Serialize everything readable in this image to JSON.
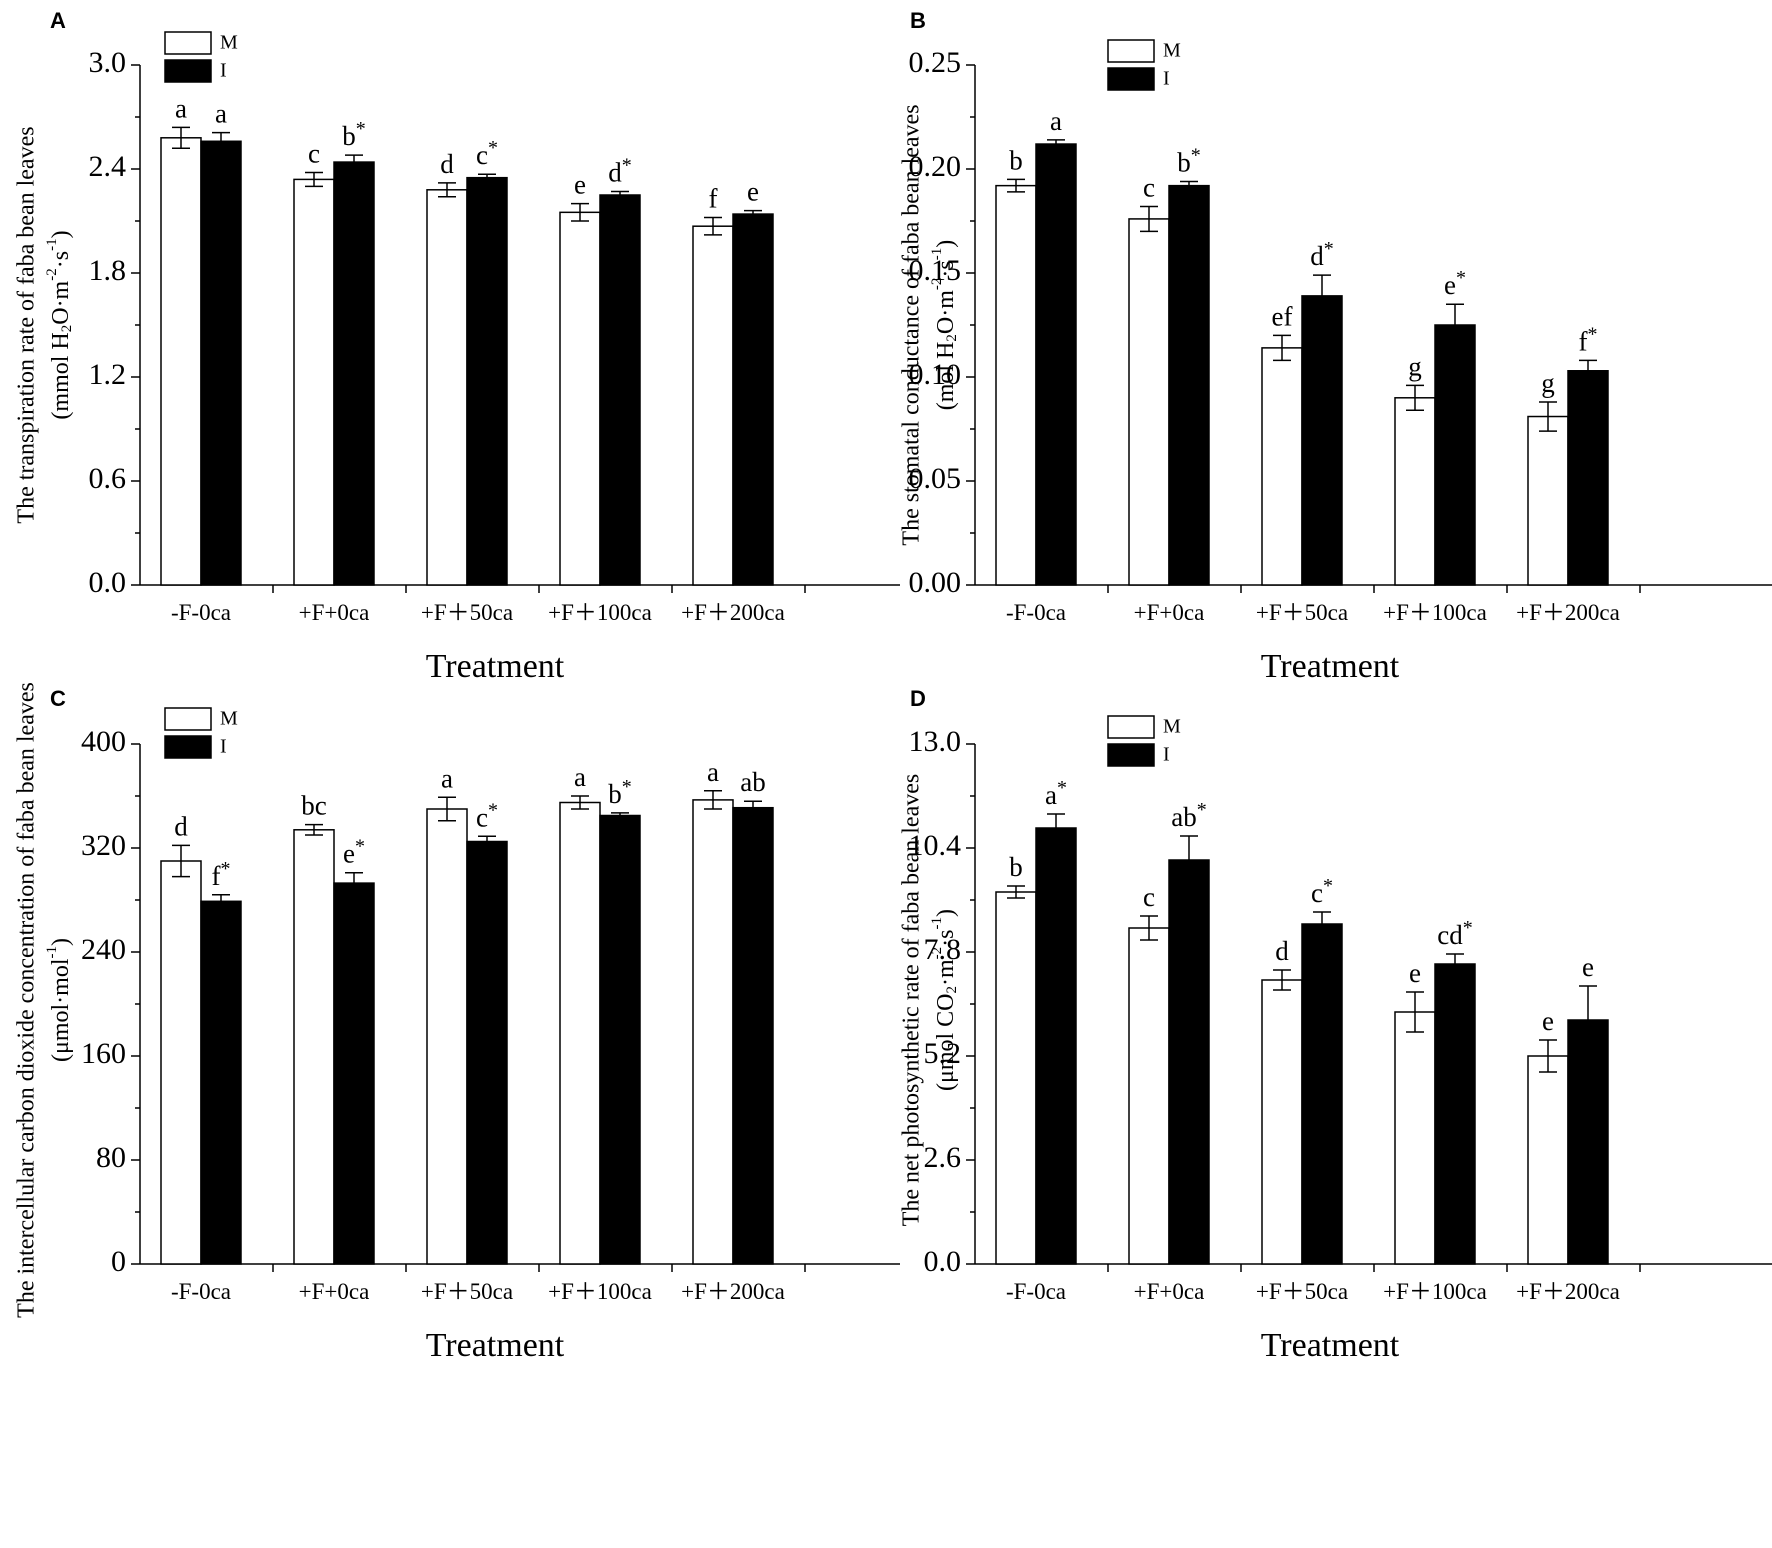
{
  "chart_data": [
    {
      "panel": "A",
      "type": "bar",
      "categories": [
        "-F-0ca",
        "+F+0ca",
        "+F＋50ca",
        "+F＋100ca",
        "+F＋200ca"
      ],
      "xlabel": "Treatment",
      "ylabel_main": "The transpiration rate of faba bean leaves",
      "ylabel_unit_parts": [
        "(mmol H",
        "2",
        "O·m",
        "-2",
        "·s",
        "-1",
        ")"
      ],
      "ylim": [
        0,
        3.0
      ],
      "yticks": [
        0.0,
        0.6,
        1.2,
        1.8,
        2.4,
        3.0
      ],
      "tick_decimals": 1,
      "legend": [
        "M",
        "I"
      ],
      "series": [
        {
          "name": "M",
          "values": [
            2.58,
            2.34,
            2.28,
            2.15,
            2.07
          ],
          "errors": [
            0.06,
            0.04,
            0.04,
            0.05,
            0.05
          ],
          "labels": [
            "a",
            "c",
            "d",
            "e",
            "f"
          ],
          "stars": [
            false,
            false,
            false,
            false,
            false
          ]
        },
        {
          "name": "I",
          "values": [
            2.56,
            2.44,
            2.35,
            2.25,
            2.14
          ],
          "errors": [
            0.05,
            0.04,
            0.02,
            0.02,
            0.02
          ],
          "labels": [
            "a",
            "b",
            "c",
            "d",
            "e"
          ],
          "stars": [
            false,
            true,
            true,
            true,
            false
          ]
        }
      ]
    },
    {
      "panel": "B",
      "type": "bar",
      "categories": [
        "-F-0ca",
        "+F+0ca",
        "+F＋50ca",
        "+F＋100ca",
        "+F＋200ca"
      ],
      "xlabel": "Treatment",
      "ylabel_main": "The stomatal conductance of faba bean leaves",
      "ylabel_unit_parts": [
        "(mol H",
        "2",
        "O·m",
        "-2",
        "·s",
        "-1",
        ")"
      ],
      "ylim": [
        0,
        0.25
      ],
      "yticks": [
        0.0,
        0.05,
        0.1,
        0.15,
        0.2,
        0.25
      ],
      "tick_decimals": 2,
      "legend": [
        "M",
        "I"
      ],
      "series": [
        {
          "name": "M",
          "values": [
            0.192,
            0.176,
            0.114,
            0.09,
            0.081
          ],
          "errors": [
            0.003,
            0.006,
            0.006,
            0.006,
            0.007
          ],
          "labels": [
            "b",
            "c",
            "ef",
            "g",
            "g"
          ],
          "stars": [
            false,
            false,
            false,
            false,
            false
          ]
        },
        {
          "name": "I",
          "values": [
            0.212,
            0.192,
            0.139,
            0.125,
            0.103
          ],
          "errors": [
            0.002,
            0.002,
            0.01,
            0.01,
            0.005
          ],
          "labels": [
            "a",
            "b",
            "d",
            "e",
            "f"
          ],
          "stars": [
            false,
            true,
            true,
            true,
            true
          ]
        }
      ]
    },
    {
      "panel": "C",
      "type": "bar",
      "categories": [
        "-F-0ca",
        "+F+0ca",
        "+F＋50ca",
        "+F＋100ca",
        "+F＋200ca"
      ],
      "xlabel": "Treatment",
      "ylabel_main": "The intercellular carbon dioxide concentration of faba bean leaves",
      "ylabel_unit_parts": [
        "(μmol·mol",
        "-1",
        ")"
      ],
      "ylim": [
        0,
        400
      ],
      "yticks": [
        0,
        80,
        160,
        240,
        320,
        400
      ],
      "tick_decimals": 0,
      "legend": [
        "M",
        "I"
      ],
      "series": [
        {
          "name": "M",
          "values": [
            310,
            334,
            350,
            355,
            357
          ],
          "errors": [
            12,
            4,
            9,
            5,
            7
          ],
          "labels": [
            "d",
            "bc",
            "a",
            "a",
            "a"
          ],
          "stars": [
            false,
            false,
            false,
            false,
            false
          ]
        },
        {
          "name": "I",
          "values": [
            279,
            293,
            325,
            345,
            351
          ],
          "errors": [
            5,
            8,
            4,
            2,
            5
          ],
          "labels": [
            "f",
            "e",
            "c",
            "b",
            "ab"
          ],
          "stars": [
            true,
            true,
            true,
            true,
            false
          ]
        }
      ]
    },
    {
      "panel": "D",
      "type": "bar",
      "categories": [
        "-F-0ca",
        "+F+0ca",
        "+F＋50ca",
        "+F＋100ca",
        "+F＋200ca"
      ],
      "xlabel": "Treatment",
      "ylabel_main": "The net photosynthetic rate of faba bean leaves",
      "ylabel_unit_parts": [
        "(μmol CO",
        "2",
        "·m",
        "-2",
        "·s",
        "-1",
        ")"
      ],
      "ylim": [
        0,
        13.0
      ],
      "yticks": [
        0.0,
        2.6,
        5.2,
        7.8,
        10.4,
        13.0
      ],
      "tick_decimals": 1,
      "legend": [
        "M",
        "I"
      ],
      "series": [
        {
          "name": "M",
          "values": [
            9.3,
            8.4,
            7.1,
            6.3,
            5.2
          ],
          "errors": [
            0.15,
            0.3,
            0.25,
            0.5,
            0.4
          ],
          "labels": [
            "b",
            "c",
            "d",
            "e",
            "e"
          ],
          "stars": [
            false,
            false,
            false,
            false,
            false
          ]
        },
        {
          "name": "I",
          "values": [
            10.9,
            10.1,
            8.5,
            7.5,
            6.1
          ],
          "errors": [
            0.35,
            0.6,
            0.3,
            0.25,
            0.85
          ],
          "labels": [
            "a",
            "ab",
            "c",
            "cd",
            "e"
          ],
          "stars": [
            true,
            true,
            true,
            true,
            false
          ]
        }
      ]
    }
  ]
}
